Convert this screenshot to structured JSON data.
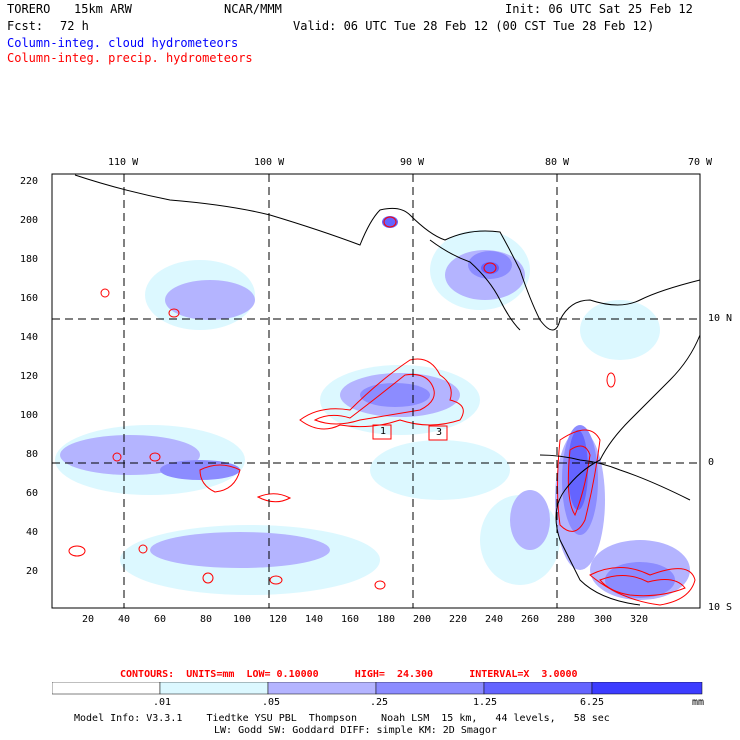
{
  "header": {
    "model": "TORERO",
    "resolution": "15km ARW",
    "org": "NCAR/MMM",
    "init": "Init: 06 UTC Sat 25 Feb 12",
    "fcst_label": "Fcst:",
    "fcst_value": "72 h",
    "valid": "Valid: 06 UTC Tue 28 Feb 12 (00 CST Tue 28 Feb 12)",
    "field1": "Column-integ. cloud hydrometeors",
    "field2": "Column-integ. precip. hydrometeors"
  },
  "colors": {
    "cloud": "#0000ff",
    "precip": "#ff0000",
    "scale": [
      "#ffffff",
      "#dcf8ff",
      "#b4b4ff",
      "#8c8cff",
      "#6464ff",
      "#3c3cff",
      "#1414ff"
    ]
  },
  "map": {
    "lon_labels_top": [
      "110 W",
      "100 W",
      "90 W",
      "80 W",
      "70 W"
    ],
    "lat_labels_right": [
      "10 N",
      "0",
      "10 S"
    ],
    "x_ticks": [
      "20",
      "40",
      "60",
      "80",
      "100",
      "120",
      "140",
      "160",
      "180",
      "200",
      "220",
      "240",
      "260",
      "280",
      "300",
      "320"
    ],
    "y_ticks": [
      "20",
      "40",
      "60",
      "80",
      "100",
      "120",
      "140",
      "160",
      "180",
      "200",
      "220"
    ],
    "box_labels": [
      "1",
      "3"
    ]
  },
  "contour_info": "CONTOURS:  UNITS=mm  LOW= 0.10000      HIGH=  24.300      INTERVAL=X  3.0000",
  "colorbar": {
    "labels": [
      ".01",
      ".05",
      ".25",
      "1.25",
      "6.25"
    ],
    "unit": "mm"
  },
  "footer": {
    "line1": "Model Info: V3.3.1    Tiedtke YSU PBL  Thompson    Noah LSM  15 km,   44 levels,   58 sec",
    "line2": "LW: Godd SW: Goddard DIFF: simple KM: 2D Smagor"
  }
}
